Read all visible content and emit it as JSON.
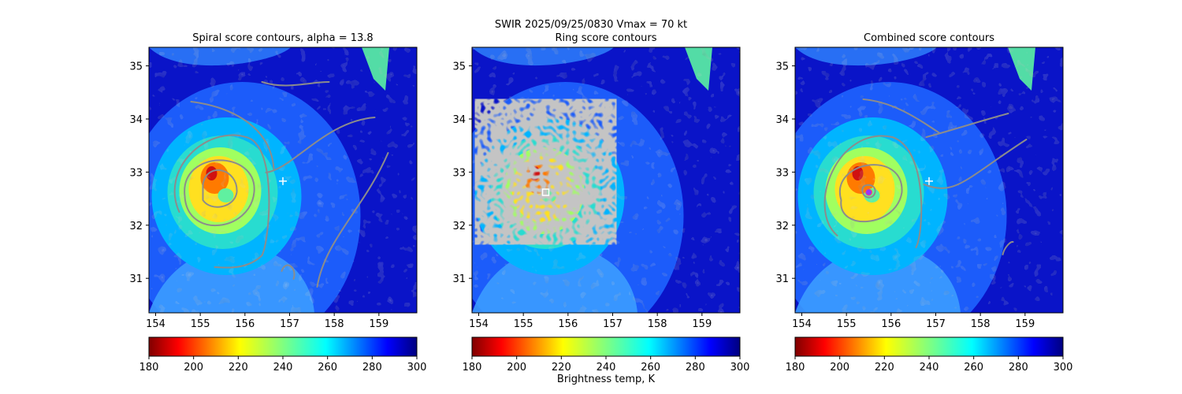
{
  "figure": {
    "suptitle_line1": "SWIR  2025/09/25/0830    Vmax = 70 kt",
    "colorbar_label": "Brightness temp, K"
  },
  "chart_data": [
    {
      "type": "heatmap",
      "title": "Spiral score contours, alpha = 13.8",
      "xlabel": "",
      "ylabel": "",
      "xlim": [
        153.85,
        159.85
      ],
      "ylim": [
        30.35,
        35.35
      ],
      "xticks": [
        154,
        155,
        156,
        157,
        158,
        159
      ],
      "yticks": [
        31,
        32,
        33,
        34,
        35
      ],
      "colorbar": {
        "ticks": [
          180,
          200,
          220,
          240,
          260,
          280,
          300
        ],
        "range": [
          180,
          300
        ],
        "cmap": "jet_r"
      },
      "markers": [
        {
          "kind": "plus",
          "color": "#ffffff",
          "x": 156.85,
          "y": 32.83
        }
      ],
      "overlay": "contour"
    },
    {
      "type": "heatmap",
      "title": "Ring score contours",
      "xlabel": "",
      "ylabel": "",
      "xlim": [
        153.85,
        159.85
      ],
      "ylim": [
        30.35,
        35.35
      ],
      "xticks": [
        154,
        155,
        156,
        157,
        158,
        159
      ],
      "yticks": [
        31,
        32,
        33,
        34,
        35
      ],
      "colorbar": {
        "ticks": [
          180,
          200,
          220,
          240,
          260,
          280,
          300
        ],
        "range": [
          180,
          300
        ],
        "cmap": "jet_r"
      },
      "markers": [
        {
          "kind": "square",
          "color": "#ffffff",
          "x": 155.5,
          "y": 32.62
        }
      ],
      "overlay": "ring-noise"
    },
    {
      "type": "heatmap",
      "title": "Combined score contours",
      "xlabel": "",
      "ylabel": "",
      "xlim": [
        153.85,
        159.85
      ],
      "ylim": [
        30.35,
        35.35
      ],
      "xticks": [
        154,
        155,
        156,
        157,
        158,
        159
      ],
      "yticks": [
        31,
        32,
        33,
        34,
        35
      ],
      "colorbar": {
        "ticks": [
          180,
          200,
          220,
          240,
          260,
          280,
          300
        ],
        "range": [
          180,
          300
        ],
        "cmap": "jet_r"
      },
      "markers": [
        {
          "kind": "plus",
          "color": "#ffffff",
          "x": 156.85,
          "y": 32.83
        },
        {
          "kind": "circle",
          "color": "#9933ff",
          "x": 155.5,
          "y": 32.62
        }
      ],
      "overlay": "contour"
    }
  ],
  "colors": {
    "contour": "#8c8c8c",
    "axis": "#000000"
  }
}
